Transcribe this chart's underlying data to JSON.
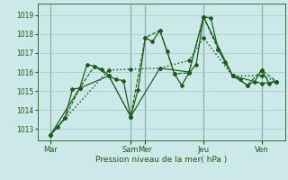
{
  "background_color": "#cce8e8",
  "grid_color": "#99cccc",
  "line_color": "#1a5c1a",
  "vline_color": "#557755",
  "xlabel": "Pression niveau de la mer( hPa )",
  "ylim": [
    1012.4,
    1019.6
  ],
  "yticks": [
    1013,
    1014,
    1015,
    1016,
    1017,
    1018,
    1019
  ],
  "xlim": [
    0,
    340
  ],
  "day_tick_positions": [
    18,
    128,
    148,
    228,
    308
  ],
  "day_labels": [
    "Mar",
    "Sam",
    "Mer",
    "Jeu",
    "Ven"
  ],
  "vline_positions": [
    18,
    128,
    148,
    228,
    308
  ],
  "series": [
    {
      "x": [
        18,
        28,
        38,
        48,
        58,
        68,
        78,
        88,
        98,
        108,
        118,
        128,
        138,
        148,
        158,
        168,
        178,
        188,
        198,
        208,
        218,
        228,
        238,
        248,
        258,
        268,
        278,
        288,
        298,
        308,
        318,
        328
      ],
      "y": [
        1012.7,
        1013.1,
        1013.6,
        1015.1,
        1015.15,
        1016.4,
        1016.3,
        1016.15,
        1015.8,
        1015.6,
        1015.55,
        1013.65,
        1015.05,
        1017.8,
        1017.6,
        1018.2,
        1017.1,
        1015.9,
        1015.3,
        1015.95,
        1016.4,
        1018.9,
        1018.85,
        1017.2,
        1016.5,
        1015.8,
        1015.6,
        1015.3,
        1015.5,
        1016.1,
        1015.4,
        1015.5
      ],
      "style": "-",
      "marker": "D",
      "markersize": 2.0,
      "linewidth": 0.9
    },
    {
      "x": [
        18,
        38,
        58,
        78,
        98,
        128,
        148,
        168,
        188,
        208,
        228,
        248,
        268,
        288,
        308,
        328
      ],
      "y": [
        1012.7,
        1013.6,
        1015.15,
        1016.3,
        1015.8,
        1013.65,
        1017.8,
        1018.2,
        1015.9,
        1015.95,
        1018.9,
        1017.2,
        1015.8,
        1015.3,
        1016.1,
        1015.5
      ],
      "style": "--",
      "marker": "D",
      "markersize": 2.0,
      "linewidth": 0.8
    },
    {
      "x": [
        18,
        58,
        98,
        128,
        168,
        208,
        228,
        268,
        308,
        328
      ],
      "y": [
        1012.7,
        1015.15,
        1015.8,
        1013.65,
        1016.2,
        1016.0,
        1018.9,
        1015.8,
        1015.4,
        1015.5
      ],
      "style": "-",
      "marker": "D",
      "markersize": 2.0,
      "linewidth": 0.85
    },
    {
      "x": [
        18,
        98,
        128,
        168,
        208,
        228,
        268,
        308,
        328
      ],
      "y": [
        1012.7,
        1016.1,
        1016.15,
        1016.2,
        1016.6,
        1017.8,
        1015.8,
        1015.8,
        1015.5
      ],
      "style": ":",
      "marker": "D",
      "markersize": 2.0,
      "linewidth": 1.1
    }
  ]
}
